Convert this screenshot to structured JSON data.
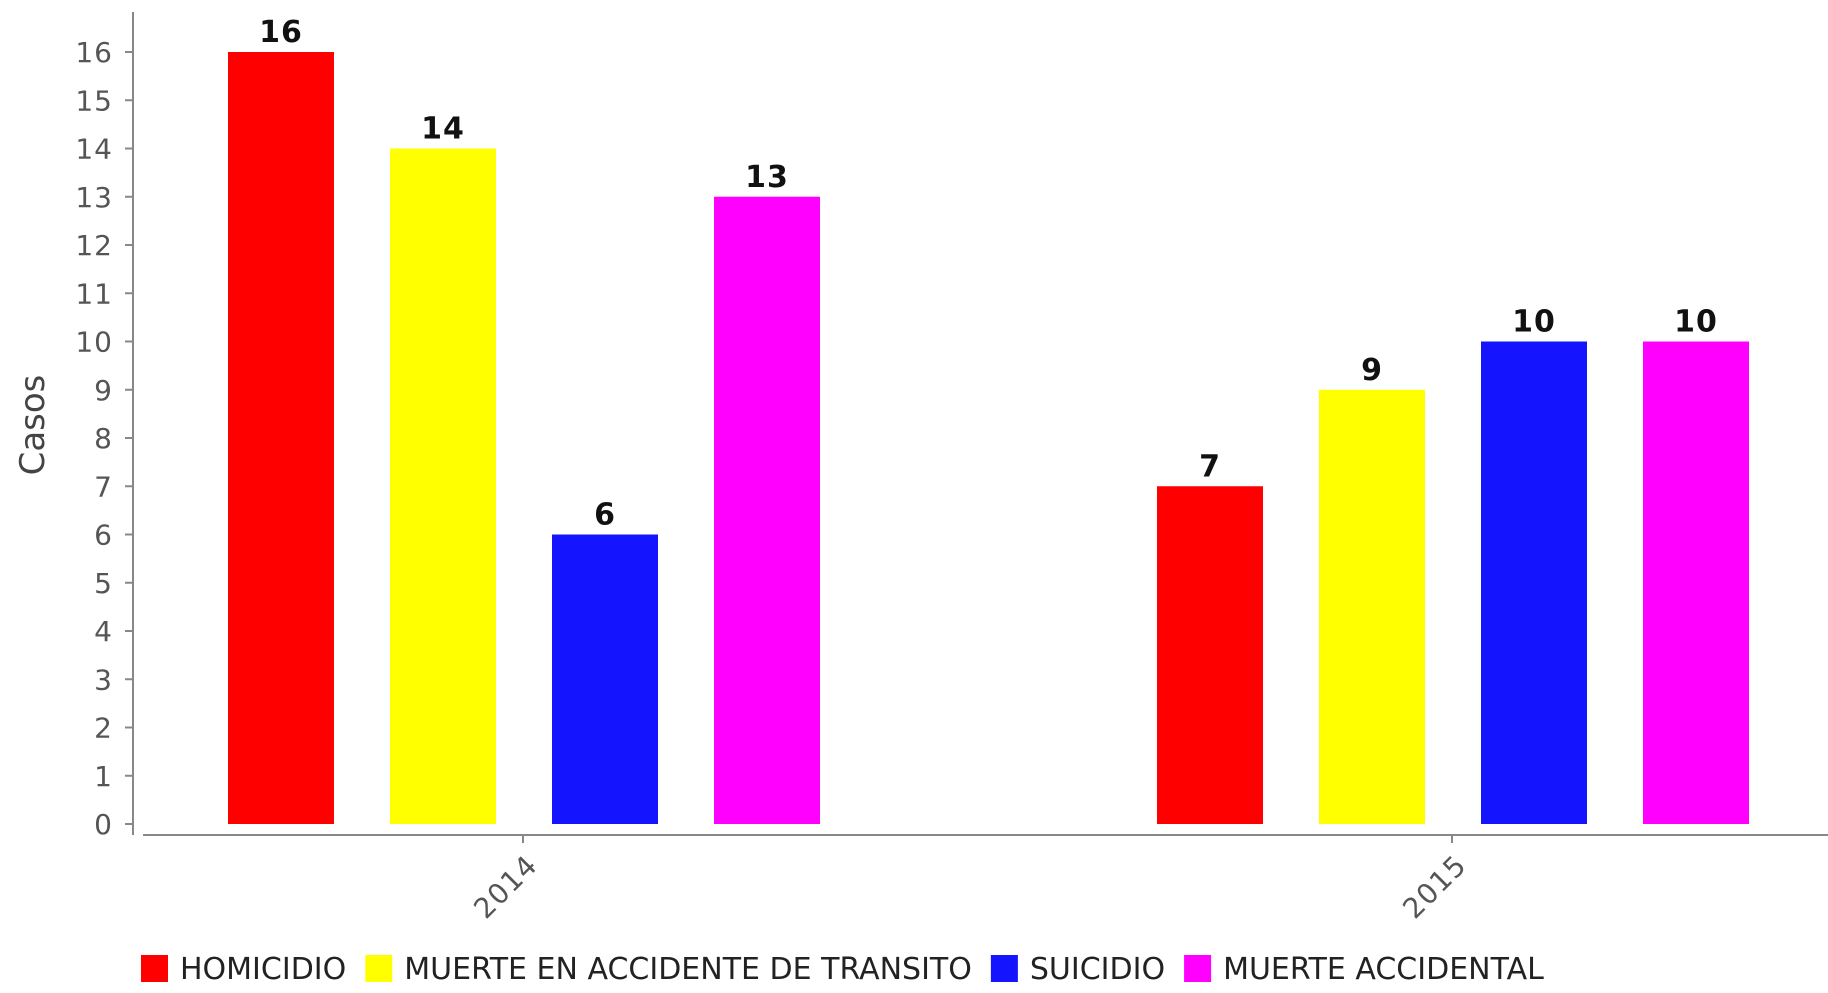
{
  "chart_data": {
    "type": "bar",
    "categories": [
      "2014",
      "2015"
    ],
    "series": [
      {
        "name": "HOMICIDIO",
        "color": "#ff0000",
        "values": [
          16,
          7
        ]
      },
      {
        "name": "MUERTE EN ACCIDENTE DE TRANSITO",
        "color": "#ffff00",
        "values": [
          14,
          9
        ]
      },
      {
        "name": "SUICIDIO",
        "color": "#1414ff",
        "values": [
          6,
          10
        ]
      },
      {
        "name": "MUERTE ACCIDENTAL",
        "color": "#ff00ff",
        "values": [
          13,
          10
        ]
      }
    ],
    "title": "",
    "xlabel": "",
    "ylabel": "Casos",
    "ylim": [
      0,
      16
    ],
    "yticks": [
      0,
      1,
      2,
      3,
      4,
      5,
      6,
      7,
      8,
      9,
      10,
      11,
      12,
      13,
      14,
      15,
      16
    ],
    "grid": false,
    "legend_position": "bottom"
  }
}
